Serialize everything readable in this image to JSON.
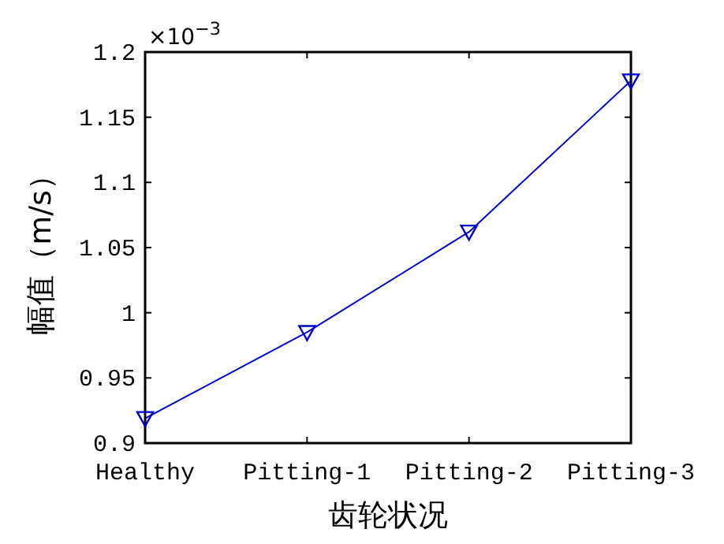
{
  "chart_data": {
    "type": "line",
    "xlabel": "齿轮状况",
    "ylabel": "幅值（m/s）",
    "categories": [
      "Healthy",
      "Pitting-1",
      "Pitting-2",
      "Pitting-3"
    ],
    "series": [
      {
        "color": "#0000cc",
        "values": [
          0.919,
          0.985,
          1.062,
          1.178
        ]
      }
    ],
    "ylim": [
      0.9,
      1.2
    ],
    "yticks": [
      0.9,
      0.95,
      1,
      1.05,
      1.1,
      1.15,
      1.2
    ],
    "annotations": [
      "×10$^{−3}$"
    ],
    "marker": "triangle",
    "line_style": "solid",
    "grid": false
  }
}
